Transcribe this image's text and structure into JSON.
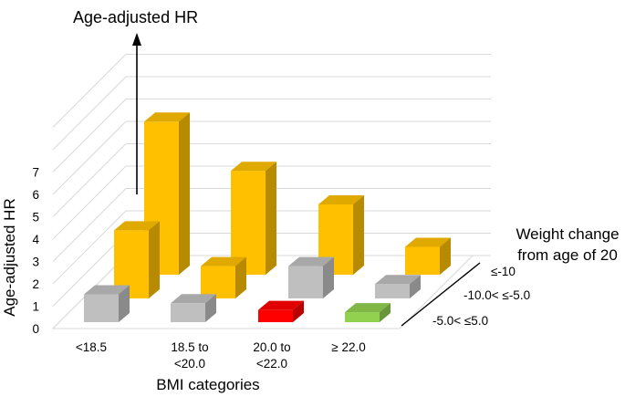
{
  "chart_data": {
    "type": "bar",
    "title": "Age-adjusted HR",
    "ylabel": "Age-adjusted HR",
    "xlabel": "BMI categories",
    "zlabel": "Weight change from age of 20",
    "zlabel_lines": [
      "Weight change",
      "from age of 20"
    ],
    "ylim": [
      0,
      7
    ],
    "yticks": [
      "0",
      "1",
      "2",
      "3",
      "4",
      "5",
      "6",
      "7"
    ],
    "grid": true,
    "categories": [
      {
        "id": "lt18",
        "lines": [
          "<18.5"
        ]
      },
      {
        "id": "b18",
        "lines": [
          "18.5 to",
          "<20.0"
        ]
      },
      {
        "id": "b20",
        "lines": [
          "20.0 to",
          "<22.0"
        ]
      },
      {
        "id": "ge22",
        "lines": [
          "≥ 22.0"
        ]
      }
    ],
    "series": [
      {
        "name": "≤-10",
        "values": [
          6.6,
          4.4,
          2.9,
          1.0
        ]
      },
      {
        "name": "-10.0< ≤-5.0",
        "values": [
          2.8,
          1.2,
          1.2,
          0.4
        ]
      },
      {
        "name": "-5.0< ≤5.0",
        "values": [
          1.0,
          0.6,
          0.3,
          0.2
        ]
      }
    ],
    "bar_colors": [
      [
        "#ffc000",
        "#ffc000",
        "#ffc000",
        "#ffc000"
      ],
      [
        "#ffc000",
        "#ffc000",
        "#bfbfbf",
        "#bfbfbf"
      ],
      [
        "#bfbfbf",
        "#bfbfbf",
        "#ff0000",
        "#92d050"
      ]
    ]
  }
}
